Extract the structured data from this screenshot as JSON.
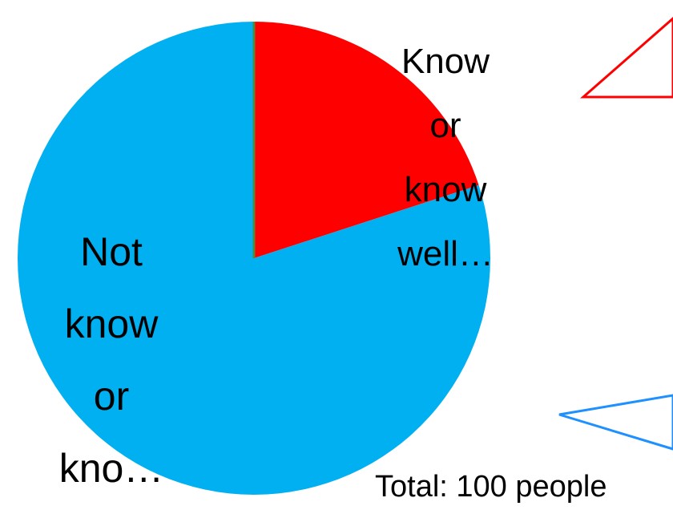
{
  "chart_data": {
    "type": "pie",
    "slices": [
      {
        "label_lines": [
          "Know",
          "or",
          "know",
          "well…"
        ],
        "value": 20,
        "color": "#ff0000"
      },
      {
        "label_lines": [
          "Not",
          "know",
          "or",
          "kno…"
        ],
        "value": 80,
        "color": "#00b0f0"
      }
    ],
    "start_angle_deg": 0,
    "direction": "clockwise",
    "total_label": "Total: 100 people",
    "callouts": [
      {
        "color": "#ff0000"
      },
      {
        "color": "#1e90ff"
      }
    ]
  }
}
